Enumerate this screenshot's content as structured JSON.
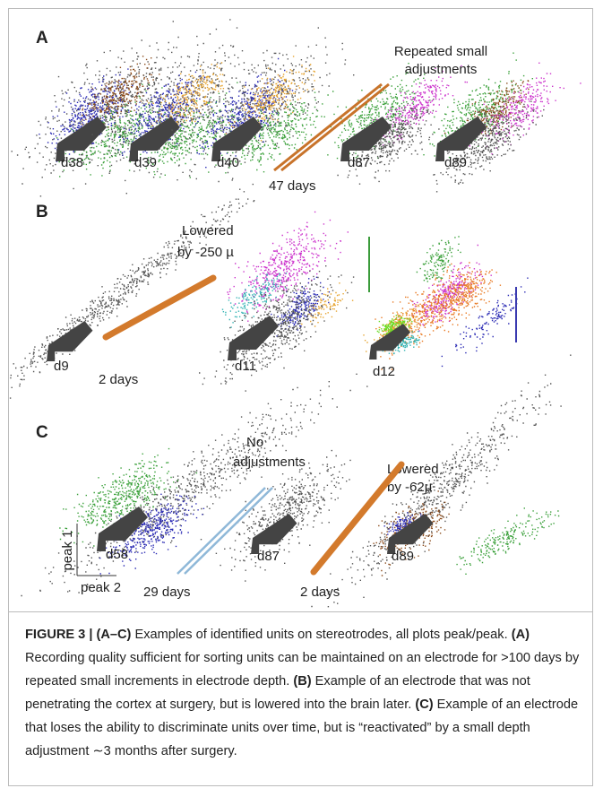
{
  "figure": {
    "panels": {
      "A": {
        "label": "A",
        "note": [
          "Repeated small",
          "adjustments"
        ],
        "interval": "47 days",
        "days": [
          "d38",
          "d39",
          "d40",
          "d87",
          "d89"
        ]
      },
      "B": {
        "label": "B",
        "note": [
          "Lowered",
          "by -250 µ"
        ],
        "interval": "2 days",
        "days": [
          "d9",
          "d11",
          "d12"
        ]
      },
      "C": {
        "label": "C",
        "notes": [
          [
            "No",
            "adjustments"
          ],
          [
            "Lowered",
            "by -62µ"
          ]
        ],
        "intervals": [
          "29 days",
          "2 days"
        ],
        "days": [
          "d58",
          "d87",
          "d89"
        ],
        "axes": [
          "peak 1",
          "peak 2"
        ]
      }
    },
    "caption": {
      "segments": [
        {
          "text": "FIGURE 3 | (A–C)",
          "bold": true
        },
        {
          "text": " Examples of identified units on stereotrodes, all plots peak/peak. ",
          "bold": false
        },
        {
          "text": "(A)",
          "bold": true
        },
        {
          "text": " Recording quality sufficient for sorting units can be maintained on an electrode for >100 days by repeated small increments in electrode depth. ",
          "bold": false
        },
        {
          "text": "(B)",
          "bold": true
        },
        {
          "text": " Example of an electrode that was not penetrating the cortex at surgery, but is lowered into the brain later. ",
          "bold": false
        },
        {
          "text": "(C)",
          "bold": true
        },
        {
          "text": " Example of an electrode that loses the ability to discriminate units over time, but is “reactivated” by a small depth adjustment ∼3 months after surgery.",
          "bold": false
        }
      ]
    }
  }
}
